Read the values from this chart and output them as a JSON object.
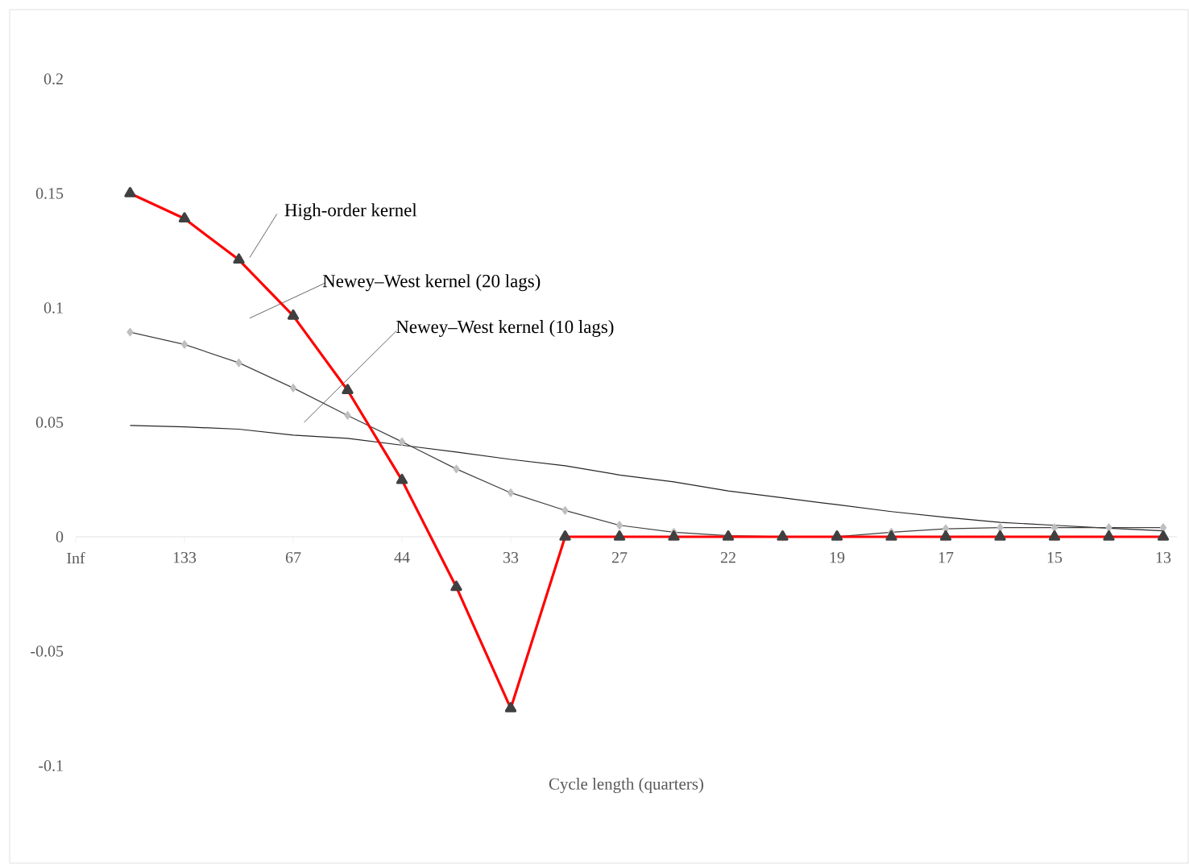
{
  "chart_data": {
    "type": "line",
    "xlabel": "Cycle length (quarters)",
    "categories": [
      "Inf",
      null,
      "133",
      null,
      "67",
      null,
      "44",
      null,
      "33",
      null,
      "27",
      null,
      "22",
      null,
      "19",
      null,
      "17",
      null,
      "15",
      null,
      "13"
    ],
    "ylim": [
      -0.1,
      0.2
    ],
    "yticks": [
      -0.1,
      -0.05,
      0,
      0.05,
      0.1,
      0.15,
      0.2
    ],
    "series": [
      {
        "name": "High-order kernel",
        "color": "#ff0000",
        "marker": "triangle",
        "values": [
          null,
          0.15,
          0.139,
          0.121,
          0.0965,
          0.064,
          0.0247,
          -0.022,
          -0.075,
          0,
          0,
          0,
          0,
          0,
          0,
          0,
          0,
          0,
          0,
          0,
          0
        ]
      },
      {
        "name": "Newey–West kernel (20 lags)",
        "color": "#404040",
        "marker": "diamond",
        "values": [
          null,
          0.0894,
          0.084,
          0.076,
          0.065,
          0.053,
          0.0415,
          0.0296,
          0.0192,
          0.0115,
          0.005,
          0.002,
          0.0005,
          0,
          0,
          0.002,
          0.0035,
          0.004,
          0.004,
          0.004,
          0.004
        ]
      },
      {
        "name": "Newey–West kernel (10 lags)",
        "color": "#262626",
        "marker": "none",
        "values": [
          null,
          0.0486,
          0.048,
          0.047,
          0.0444,
          0.043,
          0.04,
          0.037,
          0.0338,
          0.031,
          0.027,
          0.024,
          0.02,
          0.017,
          0.014,
          0.011,
          0.0085,
          0.0063,
          0.005,
          0.0037,
          0.0026
        ]
      }
    ],
    "legend": false,
    "grid": false
  }
}
